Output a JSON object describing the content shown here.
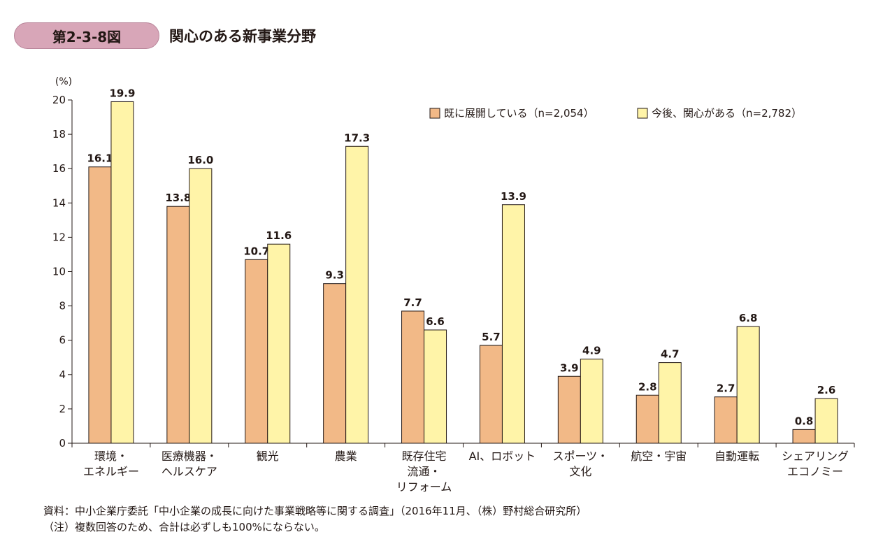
{
  "figure": {
    "number": "第2-3-8図",
    "title": "関心のある新事業分野"
  },
  "footer": {
    "source": "資料：中小企業庁委託「中小企業の成長に向けた事業戦略等に関する調査」（2016年11月、（株）野村総合研究所）",
    "note": "（注）複数回答のため、合計は必ずしも100%にならない。"
  },
  "colors": {
    "series1": "#f2b987",
    "series2": "#fff4a8",
    "badge": "#d8a6b8"
  },
  "chart_data": {
    "type": "bar",
    "ylabel": "(%)",
    "ylim": [
      0,
      20
    ],
    "yticks": [
      0,
      2,
      4,
      6,
      8,
      10,
      12,
      14,
      16,
      18,
      20
    ],
    "legend_position": "top-right",
    "categories": [
      [
        "環境・",
        "エネルギー"
      ],
      [
        "医療機器・",
        "ヘルスケア"
      ],
      [
        "観光"
      ],
      [
        "農業"
      ],
      [
        "既存住宅",
        "流通・",
        "リフォーム"
      ],
      [
        "AI、ロボット"
      ],
      [
        "スポーツ・",
        "文化"
      ],
      [
        "航空・宇宙"
      ],
      [
        "自動運転"
      ],
      [
        "シェアリング",
        "エコノミー"
      ]
    ],
    "series": [
      {
        "name": "既に展開している（n=2,054）",
        "values": [
          16.1,
          13.8,
          10.7,
          9.3,
          7.7,
          5.7,
          3.9,
          2.8,
          2.7,
          0.8
        ]
      },
      {
        "name": "今後、関心がある（n=2,782）",
        "values": [
          19.9,
          16.0,
          11.6,
          17.3,
          6.6,
          13.9,
          4.9,
          4.7,
          6.8,
          2.6
        ]
      }
    ]
  }
}
